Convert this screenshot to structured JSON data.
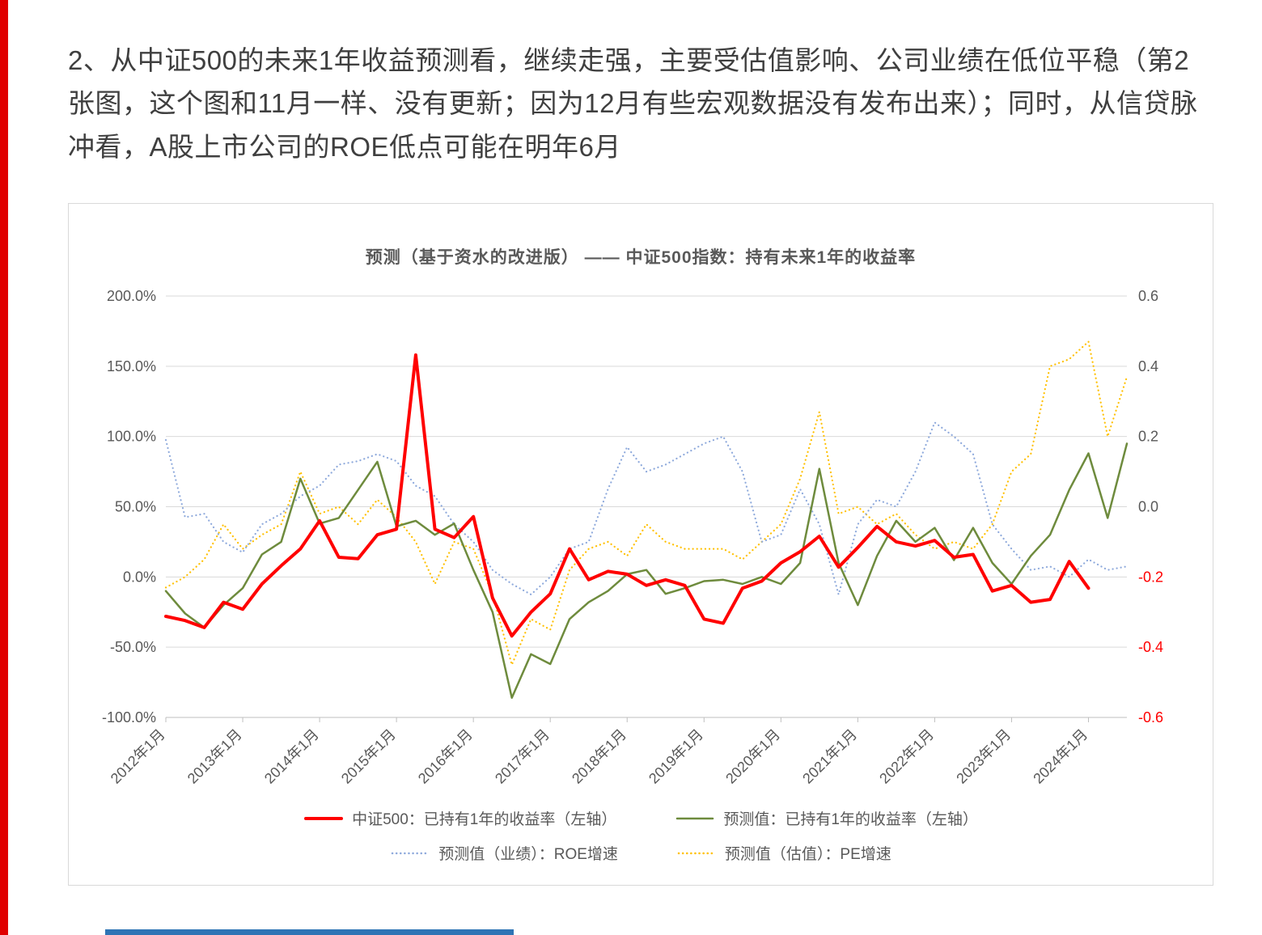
{
  "page": {
    "accent_bar_color": "#e00000",
    "bottom_bar_color": "#2e74b5"
  },
  "paragraph": {
    "text": "2、从中证500的未来1年收益预测看，继续走强，主要受估值影响、公司业绩在低位平稳（第2张图，这个图和11月一样、没有更新；因为12月有些宏观数据没有发布出来）；同时，从信贷脉冲看，A股上市公司的ROE低点可能在明年6月"
  },
  "chart_data": {
    "type": "line",
    "title": "预测（基于资水的改进版） —— 中证500指数：持有未来1年的收益率",
    "legend_position": "bottom",
    "grid": true,
    "x_tick_labels": [
      "2012年1月",
      "2013年1月",
      "2014年1月",
      "2015年1月",
      "2016年1月",
      "2017年1月",
      "2018年1月",
      "2019年1月",
      "2020年1月",
      "2021年1月",
      "2022年1月",
      "2023年1月",
      "2024年1月"
    ],
    "left_axis": {
      "ticks": [
        "200.0%",
        "150.0%",
        "100.0%",
        "50.0%",
        "0.0%",
        "-50.0%",
        "-100.0%"
      ],
      "tick_values": [
        200,
        150,
        100,
        50,
        0,
        -50,
        -100
      ],
      "max": 200,
      "min": -100,
      "unit": "%"
    },
    "right_axis": {
      "ticks": [
        "0.6",
        "0.4",
        "0.2",
        "0.0",
        "-0.2",
        "-0.4",
        "-0.6"
      ],
      "tick_values": [
        0.6,
        0.4,
        0.2,
        0.0,
        -0.2,
        -0.4,
        -0.6
      ],
      "max": 0.6,
      "min": -0.6,
      "negative_color": "#ff0000"
    },
    "categories": [
      "2012-01",
      "2012-04",
      "2012-07",
      "2012-10",
      "2013-01",
      "2013-04",
      "2013-07",
      "2013-10",
      "2014-01",
      "2014-04",
      "2014-07",
      "2014-10",
      "2015-01",
      "2015-04",
      "2015-07",
      "2015-10",
      "2016-01",
      "2016-04",
      "2016-07",
      "2016-10",
      "2017-01",
      "2017-04",
      "2017-07",
      "2017-10",
      "2018-01",
      "2018-04",
      "2018-07",
      "2018-10",
      "2019-01",
      "2019-04",
      "2019-07",
      "2019-10",
      "2020-01",
      "2020-04",
      "2020-07",
      "2020-10",
      "2021-01",
      "2021-04",
      "2021-07",
      "2021-10",
      "2022-01",
      "2022-04",
      "2022-07",
      "2022-10",
      "2023-01",
      "2023-04",
      "2023-07",
      "2023-10",
      "2024-01",
      "2024-04",
      "2024-07"
    ],
    "series": [
      {
        "key": "csi500-actual",
        "name": "中证500：已持有1年的收益率（左轴）",
        "axis": "left",
        "color": "#ff0000",
        "style": "solid",
        "width": 4,
        "values": [
          -28,
          -31,
          -36,
          -18,
          -23,
          -5,
          8,
          20,
          40,
          14,
          13,
          30,
          34,
          158,
          34,
          28,
          43,
          -15,
          -42,
          -25,
          -12,
          20,
          -2,
          4,
          2,
          -6,
          -2,
          -6,
          -30,
          -33,
          -8,
          -3,
          10,
          18,
          29,
          7,
          21,
          36,
          25,
          22,
          26,
          14,
          16,
          -10,
          -6,
          -18,
          -16,
          11,
          -8,
          null,
          null
        ]
      },
      {
        "key": "forecast-return",
        "name": "预测值：已持有1年的收益率（左轴）",
        "axis": "left",
        "color": "#6e8b3d",
        "style": "solid",
        "width": 2.5,
        "values": [
          -10,
          -26,
          -36,
          -20,
          -8,
          16,
          25,
          70,
          38,
          42,
          62,
          82,
          36,
          40,
          30,
          38,
          5,
          -25,
          -86,
          -55,
          -62,
          -30,
          -18,
          -10,
          2,
          5,
          -12,
          -8,
          -3,
          -2,
          -5,
          0,
          -5,
          10,
          77,
          10,
          -20,
          15,
          40,
          25,
          35,
          12,
          35,
          10,
          -5,
          15,
          30,
          62,
          88,
          42,
          95
        ]
      },
      {
        "key": "forecast-roe-growth",
        "name": "预测值（业绩）：ROE增速",
        "axis": "right",
        "color": "#8faadc",
        "style": "dotted",
        "width": 2.2,
        "values": [
          0.19,
          -0.03,
          -0.02,
          -0.1,
          -0.13,
          -0.05,
          -0.02,
          0.03,
          0.06,
          0.12,
          0.13,
          0.15,
          0.13,
          0.06,
          0.03,
          -0.05,
          -0.1,
          -0.18,
          -0.22,
          -0.25,
          -0.2,
          -0.12,
          -0.1,
          0.05,
          0.17,
          0.1,
          0.12,
          0.15,
          0.18,
          0.2,
          0.1,
          -0.1,
          -0.08,
          0.05,
          -0.05,
          -0.25,
          -0.05,
          0.02,
          0.0,
          0.1,
          0.24,
          0.2,
          0.15,
          -0.05,
          -0.12,
          -0.18,
          -0.17,
          -0.2,
          -0.15,
          -0.18,
          -0.17
        ]
      },
      {
        "key": "forecast-pe-growth",
        "name": "预测值（估值）：PE增速",
        "axis": "right",
        "color": "#ffc000",
        "style": "dotted",
        "width": 2.2,
        "values": [
          -0.23,
          -0.2,
          -0.15,
          -0.05,
          -0.12,
          -0.08,
          -0.05,
          0.1,
          -0.02,
          0.0,
          -0.05,
          0.02,
          -0.03,
          -0.1,
          -0.22,
          -0.1,
          -0.12,
          -0.25,
          -0.45,
          -0.32,
          -0.35,
          -0.18,
          -0.12,
          -0.1,
          -0.14,
          -0.05,
          -0.1,
          -0.12,
          -0.12,
          -0.12,
          -0.15,
          -0.1,
          -0.05,
          0.08,
          0.27,
          -0.02,
          0.0,
          -0.05,
          -0.02,
          -0.08,
          -0.12,
          -0.1,
          -0.12,
          -0.05,
          0.1,
          0.15,
          0.4,
          0.42,
          0.47,
          0.2,
          0.37
        ]
      }
    ]
  }
}
